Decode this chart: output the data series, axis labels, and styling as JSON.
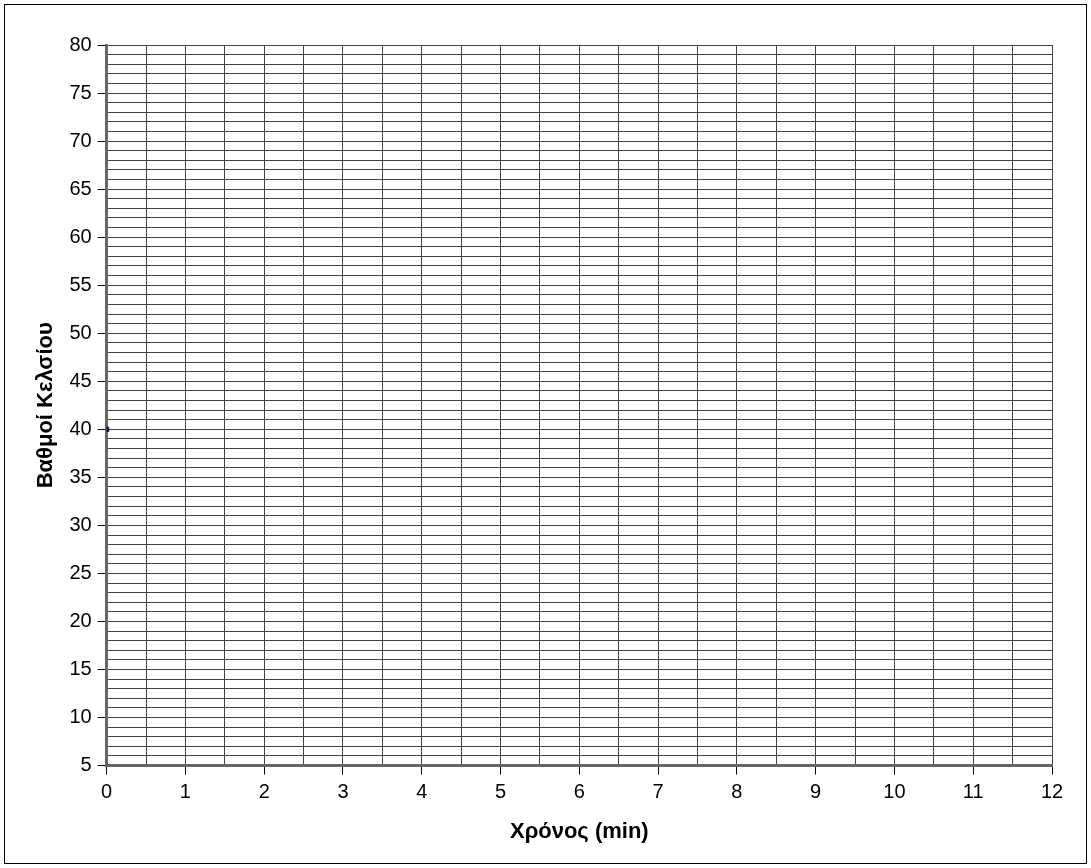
{
  "chart_data": {
    "type": "scatter",
    "xlabel": "Χρόνος (min)",
    "ylabel": "Βαθμοί Κελσίου",
    "series": [
      {
        "color": "#000080",
        "x": [
          0
        ],
        "values": [
          40
        ]
      }
    ],
    "marker": "square",
    "grid": true,
    "legend": false,
    "xlim": [
      0,
      12
    ],
    "xticks": [
      0,
      {
        "value": 0.5,
        "label": null
      },
      1,
      {
        "value": 1.5,
        "label": null
      },
      2,
      {
        "value": 2.5,
        "label": null
      },
      3,
      {
        "value": 3.5,
        "label": null
      },
      4,
      {
        "value": 4.5,
        "label": null
      },
      5,
      {
        "value": 5.5,
        "label": null
      },
      6,
      {
        "value": 6.5,
        "label": null
      },
      7,
      {
        "value": 7.5,
        "label": null
      },
      8,
      {
        "value": 8.5,
        "label": null
      },
      9,
      {
        "value": 9.5,
        "label": null
      },
      10,
      {
        "value": 10.5,
        "label": null
      },
      11,
      {
        "value": 11.5,
        "label": null
      },
      12
    ],
    "ylim": [
      5,
      80
    ],
    "yticks": [
      5,
      {
        "value": 6,
        "label": null
      },
      {
        "value": 7,
        "label": null
      },
      {
        "value": 8,
        "label": null
      },
      {
        "value": 9,
        "label": null
      },
      10,
      {
        "value": 11,
        "label": null
      },
      {
        "value": 12,
        "label": null
      },
      {
        "value": 13,
        "label": null
      },
      {
        "value": 14,
        "label": null
      },
      15,
      {
        "value": 16,
        "label": null
      },
      {
        "value": 17,
        "label": null
      },
      {
        "value": 18,
        "label": null
      },
      {
        "value": 19,
        "label": null
      },
      20,
      {
        "value": 21,
        "label": null
      },
      {
        "value": 22,
        "label": null
      },
      {
        "value": 23,
        "label": null
      },
      {
        "value": 24,
        "label": null
      },
      25,
      {
        "value": 26,
        "label": null
      },
      {
        "value": 27,
        "label": null
      },
      {
        "value": 28,
        "label": null
      },
      {
        "value": 29,
        "label": null
      },
      30,
      {
        "value": 31,
        "label": null
      },
      {
        "value": 32,
        "label": null
      },
      {
        "value": 33,
        "label": null
      },
      {
        "value": 34,
        "label": null
      },
      35,
      {
        "value": 36,
        "label": null
      },
      {
        "value": 37,
        "label": null
      },
      {
        "value": 38,
        "label": null
      },
      {
        "value": 39,
        "label": null
      },
      40,
      {
        "value": 41,
        "label": null
      },
      {
        "value": 42,
        "label": null
      },
      {
        "value": 43,
        "label": null
      },
      {
        "value": 44,
        "label": null
      },
      45,
      {
        "value": 46,
        "label": null
      },
      {
        "value": 47,
        "label": null
      },
      {
        "value": 48,
        "label": null
      },
      {
        "value": 49,
        "label": null
      },
      50,
      {
        "value": 51,
        "label": null
      },
      {
        "value": 52,
        "label": null
      },
      {
        "value": 53,
        "label": null
      },
      {
        "value": 54,
        "label": null
      },
      55,
      {
        "value": 56,
        "label": null
      },
      {
        "value": 57,
        "label": null
      },
      {
        "value": 58,
        "label": null
      },
      {
        "value": 59,
        "label": null
      },
      60,
      {
        "value": 61,
        "label": null
      },
      {
        "value": 62,
        "label": null
      },
      {
        "value": 63,
        "label": null
      },
      {
        "value": 64,
        "label": null
      },
      65,
      {
        "value": 66,
        "label": null
      },
      {
        "value": 67,
        "label": null
      },
      {
        "value": 68,
        "label": null
      },
      {
        "value": 69,
        "label": null
      },
      70,
      {
        "value": 71,
        "label": null
      },
      {
        "value": 72,
        "label": null
      },
      {
        "value": 73,
        "label": null
      },
      {
        "value": 74,
        "label": null
      },
      75,
      {
        "value": 76,
        "label": null
      },
      {
        "value": 77,
        "label": null
      },
      {
        "value": 78,
        "label": null
      },
      {
        "value": 79,
        "label": null
      },
      80
    ]
  }
}
